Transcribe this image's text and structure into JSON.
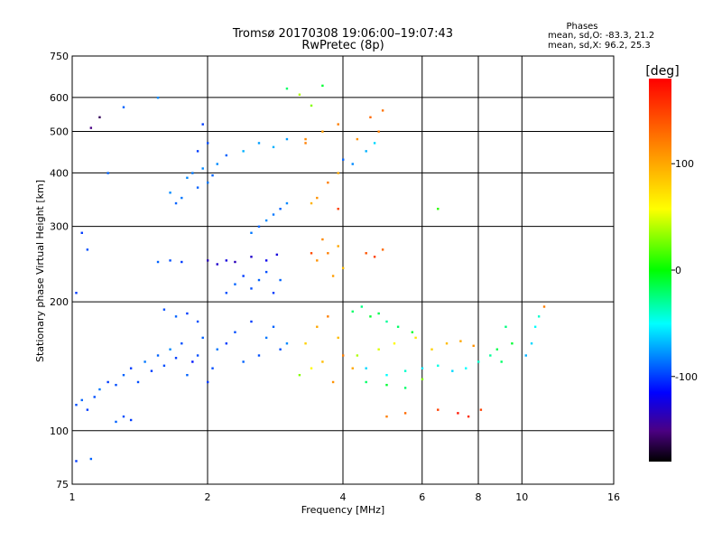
{
  "chart_data": {
    "type": "scatter",
    "title": "Tromsø 20170308 19:06:00–19:07:43",
    "subtitle": "RwPretec (8p)",
    "xlabel": "Frequency [MHz]",
    "ylabel": "Stationary phase Virtual Height [km]",
    "x_scale": "log",
    "y_scale": "log",
    "xlim": [
      1,
      16
    ],
    "ylim": [
      75,
      750
    ],
    "x_ticks": [
      1,
      2,
      4,
      6,
      8,
      10,
      16
    ],
    "y_ticks": [
      75,
      100,
      200,
      300,
      400,
      500,
      600,
      750
    ],
    "x_grid": [
      2,
      4,
      6,
      8,
      10
    ],
    "y_grid": [
      100,
      200,
      300,
      400,
      500,
      600
    ],
    "grid": true,
    "phases": {
      "heading": "Phases",
      "line_o": "mean, sd,O: -83.3, 21.2",
      "line_x": "mean, sd,X:  96.2, 25.3"
    },
    "colorbar": {
      "label": "[deg]",
      "min": -180,
      "max": 180,
      "ticks": [
        100,
        0,
        -100
      ],
      "tick_labels": [
        "100",
        "0",
        "-100"
      ]
    },
    "series": [
      {
        "points": [
          [
            1.02,
            115,
            -95
          ],
          [
            1.05,
            118,
            -90
          ],
          [
            1.08,
            112,
            -100
          ],
          [
            1.12,
            120,
            -95
          ],
          [
            1.15,
            125,
            -85
          ],
          [
            1.2,
            130,
            -100
          ],
          [
            1.25,
            128,
            -95
          ],
          [
            1.3,
            135,
            -90
          ],
          [
            1.35,
            140,
            -100
          ],
          [
            1.4,
            130,
            -95
          ],
          [
            1.45,
            145,
            -85
          ],
          [
            1.5,
            138,
            -100
          ],
          [
            1.55,
            150,
            -90
          ],
          [
            1.6,
            142,
            -95
          ],
          [
            1.65,
            155,
            -80
          ],
          [
            1.7,
            148,
            -100
          ],
          [
            1.75,
            160,
            -95
          ],
          [
            1.8,
            135,
            -90
          ],
          [
            1.85,
            145,
            -110
          ],
          [
            1.9,
            150,
            -95
          ],
          [
            1.95,
            165,
            -90
          ],
          [
            2.0,
            130,
            -100
          ],
          [
            2.05,
            140,
            -95
          ],
          [
            2.1,
            155,
            -85
          ],
          [
            2.2,
            160,
            -100
          ],
          [
            2.3,
            170,
            -95
          ],
          [
            2.4,
            145,
            -90
          ],
          [
            2.5,
            180,
            -100
          ],
          [
            2.6,
            150,
            -95
          ],
          [
            2.7,
            165,
            -85
          ],
          [
            2.8,
            175,
            -90
          ],
          [
            2.9,
            155,
            -95
          ],
          [
            3.0,
            160,
            -80
          ],
          [
            1.25,
            105,
            -90
          ],
          [
            1.3,
            108,
            -95
          ],
          [
            1.35,
            106,
            -100
          ],
          [
            1.6,
            192,
            -95
          ],
          [
            1.7,
            185,
            -90
          ],
          [
            1.8,
            188,
            -100
          ],
          [
            1.9,
            180,
            -95
          ],
          [
            1.55,
            248,
            -90
          ],
          [
            1.65,
            250,
            -95
          ],
          [
            1.75,
            248,
            -100
          ],
          [
            1.8,
            390,
            -80
          ],
          [
            1.85,
            400,
            -85
          ],
          [
            1.9,
            370,
            -90
          ],
          [
            1.95,
            410,
            -80
          ],
          [
            2.0,
            380,
            -85
          ],
          [
            2.05,
            395,
            -90
          ],
          [
            2.1,
            420,
            -80
          ],
          [
            1.75,
            350,
            -85
          ],
          [
            1.7,
            340,
            -90
          ],
          [
            1.65,
            360,
            -80
          ],
          [
            2.0,
            250,
            -135
          ],
          [
            2.1,
            245,
            -130
          ],
          [
            2.2,
            250,
            -125
          ],
          [
            2.3,
            248,
            -135
          ],
          [
            2.5,
            255,
            -130
          ],
          [
            2.7,
            250,
            -120
          ],
          [
            2.85,
            258,
            -125
          ],
          [
            2.2,
            210,
            -95
          ],
          [
            2.3,
            220,
            -90
          ],
          [
            2.4,
            230,
            -100
          ],
          [
            2.5,
            215,
            -95
          ],
          [
            2.6,
            225,
            -90
          ],
          [
            2.7,
            235,
            -95
          ],
          [
            2.8,
            210,
            -100
          ],
          [
            2.9,
            225,
            -90
          ],
          [
            2.5,
            290,
            -85
          ],
          [
            2.6,
            300,
            -90
          ],
          [
            2.7,
            310,
            -80
          ],
          [
            2.8,
            320,
            -85
          ],
          [
            2.9,
            330,
            -90
          ],
          [
            3.0,
            340,
            -80
          ],
          [
            2.4,
            450,
            -70
          ],
          [
            2.6,
            470,
            -75
          ],
          [
            2.8,
            460,
            -70
          ],
          [
            3.0,
            480,
            -75
          ],
          [
            3.2,
            135,
            30
          ],
          [
            3.4,
            140,
            60
          ],
          [
            3.6,
            145,
            90
          ],
          [
            3.8,
            130,
            110
          ],
          [
            4.0,
            150,
            120
          ],
          [
            4.2,
            140,
            100
          ],
          [
            3.3,
            160,
            80
          ],
          [
            3.5,
            175,
            100
          ],
          [
            3.7,
            185,
            120
          ],
          [
            3.9,
            165,
            90
          ],
          [
            3.5,
            250,
            110
          ],
          [
            3.7,
            260,
            120
          ],
          [
            3.9,
            270,
            100
          ],
          [
            4.0,
            240,
            90
          ],
          [
            3.6,
            280,
            115
          ],
          [
            3.8,
            230,
            105
          ],
          [
            3.5,
            350,
            110
          ],
          [
            3.7,
            380,
            120
          ],
          [
            3.9,
            400,
            100
          ],
          [
            3.4,
            340,
            95
          ],
          [
            3.3,
            480,
            115
          ],
          [
            3.6,
            500,
            105
          ],
          [
            3.9,
            520,
            120
          ],
          [
            4.3,
            480,
            110
          ],
          [
            4.6,
            540,
            130
          ],
          [
            4.8,
            500,
            120
          ],
          [
            4.9,
            560,
            125
          ],
          [
            3.6,
            640,
            -10
          ],
          [
            3.2,
            610,
            40
          ],
          [
            3.0,
            630,
            -20
          ],
          [
            3.4,
            575,
            30
          ],
          [
            4.0,
            430,
            -90
          ],
          [
            4.2,
            420,
            -80
          ],
          [
            4.5,
            450,
            -70
          ],
          [
            4.7,
            470,
            -60
          ],
          [
            4.5,
            260,
            140
          ],
          [
            4.7,
            255,
            150
          ],
          [
            4.9,
            265,
            130
          ],
          [
            4.2,
            190,
            -20
          ],
          [
            4.6,
            185,
            -10
          ],
          [
            5.0,
            180,
            -30
          ],
          [
            5.3,
            175,
            -20
          ],
          [
            5.7,
            170,
            -10
          ],
          [
            4.4,
            195,
            -25
          ],
          [
            4.8,
            188,
            -15
          ],
          [
            4.5,
            140,
            -60
          ],
          [
            5.0,
            135,
            -50
          ],
          [
            5.5,
            138,
            -40
          ],
          [
            6.0,
            140,
            -55
          ],
          [
            6.5,
            142,
            -45
          ],
          [
            7.0,
            138,
            -60
          ],
          [
            7.5,
            140,
            -50
          ],
          [
            8.0,
            145,
            -40
          ],
          [
            4.3,
            150,
            40
          ],
          [
            4.8,
            155,
            50
          ],
          [
            5.2,
            160,
            60
          ],
          [
            5.8,
            165,
            70
          ],
          [
            6.3,
            155,
            80
          ],
          [
            6.8,
            160,
            90
          ],
          [
            7.3,
            162,
            100
          ],
          [
            7.8,
            158,
            110
          ],
          [
            8.5,
            150,
            -30
          ],
          [
            9.0,
            145,
            -20
          ],
          [
            9.5,
            160,
            -10
          ],
          [
            9.2,
            175,
            -25
          ],
          [
            8.8,
            155,
            -15
          ],
          [
            10.2,
            150,
            -70
          ],
          [
            10.5,
            160,
            -60
          ],
          [
            10.7,
            175,
            -50
          ],
          [
            10.9,
            185,
            -40
          ],
          [
            11.2,
            195,
            120
          ],
          [
            4.5,
            130,
            -20
          ],
          [
            5.0,
            128,
            -10
          ],
          [
            5.5,
            126,
            -20
          ],
          [
            6.0,
            132,
            30
          ],
          [
            6.5,
            112,
            150
          ],
          [
            7.2,
            110,
            170
          ],
          [
            7.6,
            108,
            160
          ],
          [
            8.1,
            112,
            150
          ],
          [
            5.0,
            108,
            120
          ],
          [
            5.5,
            110,
            130
          ],
          [
            6.5,
            330,
            10
          ],
          [
            1.55,
            600,
            -80
          ],
          [
            1.3,
            570,
            -90
          ],
          [
            1.05,
            290,
            -100
          ],
          [
            1.08,
            265,
            -95
          ],
          [
            1.02,
            210,
            -100
          ],
          [
            1.1,
            510,
            -150
          ],
          [
            1.15,
            540,
            -160
          ],
          [
            1.2,
            400,
            -90
          ],
          [
            1.02,
            85,
            -100
          ],
          [
            1.1,
            86,
            -90
          ],
          [
            1.9,
            450,
            -100
          ],
          [
            2.0,
            470,
            -95
          ],
          [
            2.2,
            440,
            -90
          ],
          [
            1.95,
            520,
            -100
          ],
          [
            3.3,
            470,
            120
          ],
          [
            3.9,
            330,
            150
          ],
          [
            3.4,
            260,
            145
          ]
        ]
      }
    ]
  }
}
